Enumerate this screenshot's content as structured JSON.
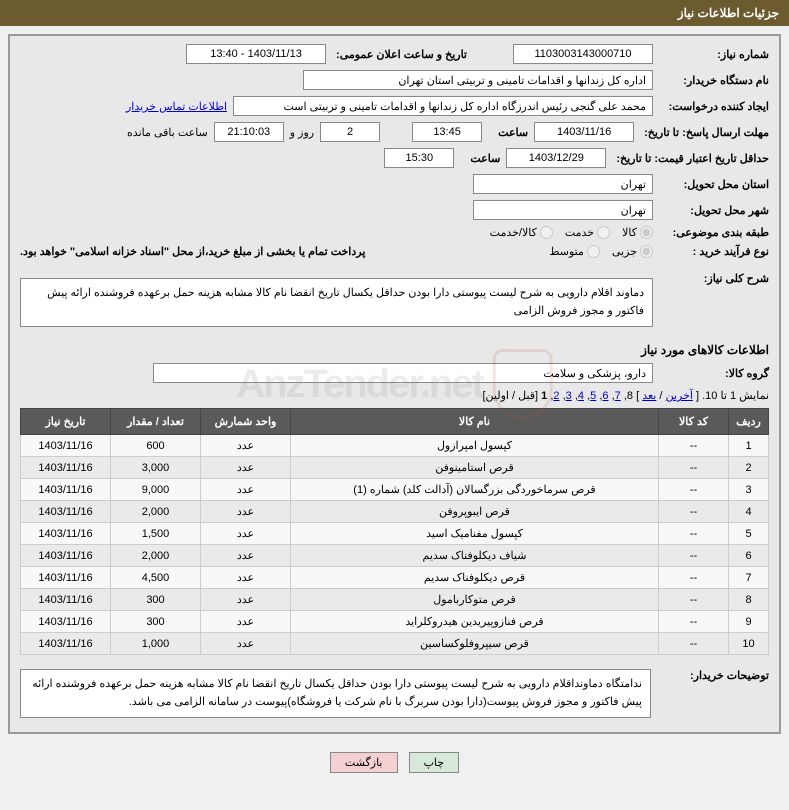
{
  "header_title": "جزئیات اطلاعات نیاز",
  "request_no_label": "شماره نیاز:",
  "request_no": "1103003143000710",
  "announce_dt_label": "تاریخ و ساعت اعلان عمومی:",
  "announce_dt": "1403/11/13 - 13:40",
  "org_label": "نام دستگاه خریدار:",
  "org_name": "اداره کل زندانها و اقدامات تامینی و تربیتی استان تهران",
  "requester_label": "ایجاد کننده درخواست:",
  "requester": "محمد علی گنجی رئیس اندرزگاه  اداره کل زندانها و اقدامات تامینی و تربیتی است",
  "buyer_contact_link": "اطلاعات تماس خریدار",
  "deadline_send_label": "مهلت ارسال پاسخ: تا تاریخ:",
  "deadline_send_date": "1403/11/16",
  "time_label": "ساعت",
  "deadline_send_time": "13:45",
  "days_remaining": "2",
  "days_suffix": "روز و",
  "time_remaining": "21:10:03",
  "remaining_suffix": "ساعت باقی مانده",
  "validity_label": "حداقل تاریخ اعتبار قیمت: تا تاریخ:",
  "validity_date": "1403/12/29",
  "validity_time": "15:30",
  "province_label": "استان محل تحویل:",
  "province": "تهران",
  "city_label": "شهر محل تحویل:",
  "city": "تهران",
  "category_label": "طبقه بندی موضوعی:",
  "cat_opts": [
    "کالا",
    "خدمت",
    "کالا/خدمت"
  ],
  "process_label": "نوع فرآیند خرید :",
  "proc_opts": [
    "جزیی",
    "متوسط"
  ],
  "process_note": "پرداخت تمام یا بخشی از مبلغ خرید،از محل \"اسناد خزانه اسلامی\" خواهد بود.",
  "overall_desc_label": "شرح کلی نیاز:",
  "overall_desc": "دماوند اقلام دارویی به شرح لیست پیوستی دارا بودن حداقل یکسال تاریخ انقضا نام کالا مشابه هزینه حمل برعهده فروشنده ارائه پیش فاکتور و مجوز فروش الزامی",
  "items_info_title": "اطلاعات کالاهای مورد نیاز",
  "group_label": "گروه کالا:",
  "group_value": "دارو، پزشکی و سلامت",
  "pagination_text": "نمایش 1 تا 10. [ ",
  "pagination_last": "آخرین",
  "pagination_sep": " / ",
  "pagination_next": "بعد",
  "pagination_mid": " ] 8, ",
  "pagination_pages": [
    "7",
    "6",
    "5",
    "4",
    "3",
    "2"
  ],
  "pagination_current": "1",
  "pagination_end": " [قبل / اولین]",
  "headers": {
    "row": "ردیف",
    "code": "کد کالا",
    "name": "نام کالا",
    "unit": "واحد شمارش",
    "qty": "تعداد / مقدار",
    "date": "تاریخ نیاز"
  },
  "rows": [
    {
      "n": "1",
      "code": "--",
      "name": "کپسول امپرازول",
      "unit": "عدد",
      "qty": "600",
      "date": "1403/11/16"
    },
    {
      "n": "2",
      "code": "--",
      "name": "قرص استامینوفن",
      "unit": "عدد",
      "qty": "3,000",
      "date": "1403/11/16"
    },
    {
      "n": "3",
      "code": "--",
      "name": "قرص سرماخوردگی بزرگسالان (آدالت کلد) شماره (1)",
      "unit": "عدد",
      "qty": "9,000",
      "date": "1403/11/16"
    },
    {
      "n": "4",
      "code": "--",
      "name": "قرص ایبوپروفن",
      "unit": "عدد",
      "qty": "2,000",
      "date": "1403/11/16"
    },
    {
      "n": "5",
      "code": "--",
      "name": "کپسول مفنامیک اسید",
      "unit": "عدد",
      "qty": "1,500",
      "date": "1403/11/16"
    },
    {
      "n": "6",
      "code": "--",
      "name": "شیاف دیکلوفناک سدیم",
      "unit": "عدد",
      "qty": "2,000",
      "date": "1403/11/16"
    },
    {
      "n": "7",
      "code": "--",
      "name": "قرص دیکلوفناک سدیم",
      "unit": "عدد",
      "qty": "4,500",
      "date": "1403/11/16"
    },
    {
      "n": "8",
      "code": "--",
      "name": "قرص متوکاربامول",
      "unit": "عدد",
      "qty": "300",
      "date": "1403/11/16"
    },
    {
      "n": "9",
      "code": "--",
      "name": "قرص فنازوپیریدین هیدروکلراید",
      "unit": "عدد",
      "qty": "300",
      "date": "1403/11/16"
    },
    {
      "n": "10",
      "code": "--",
      "name": "قرص سیپروفلوکساسین",
      "unit": "عدد",
      "qty": "1,000",
      "date": "1403/11/16"
    }
  ],
  "buyer_remarks_label": "توضیحات خریدار:",
  "buyer_remarks": "ندامتگاه دماونداقلام دارویی به شرح لیست پیوستی دارا بودن حداقل یکسال تاریخ انقضا نام کالا مشابه هزینه حمل برعهده فروشنده ارائه پیش فاکتور و مجوز فروش پیوست(دارا بودن سربرگ با نام شرکت یا فروشگاه)پیوست در سامانه الزامی می باشد.",
  "btn_print": "چاپ",
  "btn_back": "بازگشت"
}
